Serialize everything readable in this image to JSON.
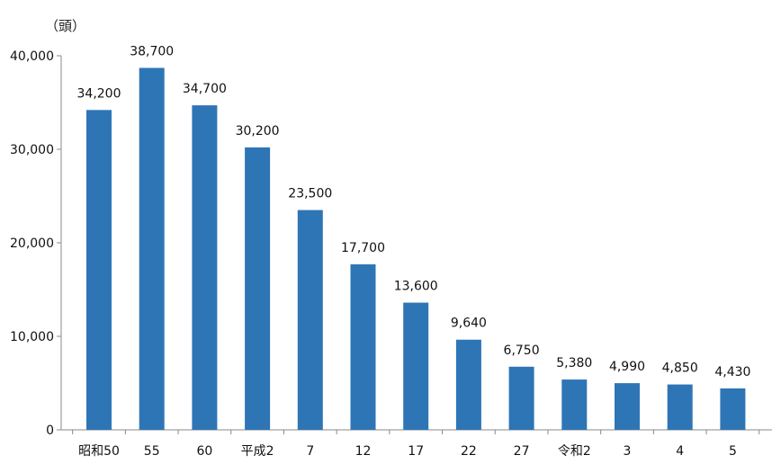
{
  "chart_data": {
    "type": "bar",
    "unit_label": "（頭）",
    "categories": [
      "昭和50",
      "55",
      "60",
      "平成2",
      "7",
      "12",
      "17",
      "22",
      "27",
      "令和2",
      "3",
      "4",
      "5"
    ],
    "values": [
      34200,
      38700,
      34700,
      30200,
      23500,
      17700,
      13600,
      9640,
      6750,
      5380,
      4990,
      4850,
      4430
    ],
    "value_labels": [
      "34,200",
      "38,700",
      "34,700",
      "30,200",
      "23,500",
      "17,700",
      "13,600",
      "9,640",
      "6,750",
      "5,380",
      "4,990",
      "4,850",
      "4,430"
    ],
    "y_ticks": [
      0,
      10000,
      20000,
      30000,
      40000
    ],
    "y_tick_labels": [
      "0",
      "10,000",
      "20,000",
      "30,000",
      "40,000"
    ],
    "ylim": [
      0,
      40000
    ],
    "grid": false,
    "bar_color": "#2E75B6"
  }
}
